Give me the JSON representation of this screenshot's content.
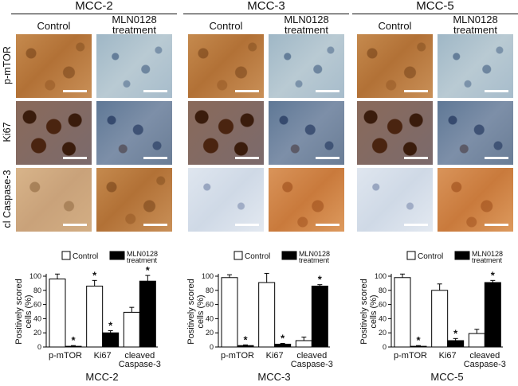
{
  "panels": [
    {
      "title": "MCC-2",
      "col_control": "Control",
      "col_treat": "MLN0128\ntreatment"
    },
    {
      "title": "MCC-3",
      "col_control": "Control",
      "col_treat": "MLN0128\ntreatment"
    },
    {
      "title": "MCC-5",
      "col_control": "Control",
      "col_treat": "MLN0128\ntreatment"
    }
  ],
  "row_labels": [
    "p-mTOR",
    "Ki67",
    "cl Caspase-3"
  ],
  "legend": {
    "control": "Control",
    "treatment_line1": "MLN0128",
    "treatment_line2": "treatment"
  },
  "ylabel_line1": "Positively scored",
  "ylabel_line2": "cells (%)",
  "colors": {
    "control_bar": "#ffffff",
    "treatment_bar": "#000000"
  },
  "chart_data": [
    {
      "type": "bar",
      "title": "MCC-2",
      "xlabel": "MCC-2",
      "ylabel": "Positively scored cells (%)",
      "ylim": [
        0,
        100
      ],
      "yticks": [
        0,
        20,
        40,
        60,
        80,
        100
      ],
      "categories": [
        "p-mTOR",
        "Ki67",
        "cleaved Caspase-3"
      ],
      "category_lines": [
        [
          "p-mTOR"
        ],
        [
          "Ki67"
        ],
        [
          "cleaved",
          "Caspase-3"
        ]
      ],
      "series": [
        {
          "name": "Control",
          "values": [
            96,
            86,
            49
          ],
          "errors": [
            7,
            8,
            7
          ]
        },
        {
          "name": "MLN0128 treatment",
          "values": [
            1,
            20,
            93
          ],
          "errors": [
            1,
            3,
            8
          ]
        }
      ],
      "significance": [
        false,
        true,
        true,
        true,
        false,
        true
      ]
    },
    {
      "type": "bar",
      "title": "MCC-3",
      "xlabel": "MCC-3",
      "ylabel": "Positively scored cells (%)",
      "ylim": [
        0,
        100
      ],
      "yticks": [
        0,
        20,
        40,
        60,
        80,
        100
      ],
      "categories": [
        "p-mTOR",
        "Ki67",
        "cleaved Caspase-3"
      ],
      "category_lines": [
        [
          "p-mTOR"
        ],
        [
          "Ki67"
        ],
        [
          "cleaved",
          "Caspase-3"
        ]
      ],
      "series": [
        {
          "name": "Control",
          "values": [
            98,
            91,
            9
          ],
          "errors": [
            4,
            13,
            5
          ]
        },
        {
          "name": "MLN0128 treatment",
          "values": [
            2,
            4,
            86
          ],
          "errors": [
            1,
            1,
            2
          ]
        }
      ],
      "significance": [
        false,
        true,
        false,
        true,
        false,
        true
      ]
    },
    {
      "type": "bar",
      "title": "MCC-5",
      "xlabel": "MCC-5",
      "ylabel": "Positively scored cells (%)",
      "ylim": [
        0,
        100
      ],
      "yticks": [
        0,
        20,
        40,
        60,
        80,
        100
      ],
      "categories": [
        "p-mTOR",
        "Ki67",
        "cleaved Caspase-3"
      ],
      "category_lines": [
        [
          "p-mTOR"
        ],
        [
          "Ki67"
        ],
        [
          "cleaved",
          "Caspase-3"
        ]
      ],
      "series": [
        {
          "name": "Control",
          "values": [
            98,
            80,
            19
          ],
          "errors": [
            5,
            9,
            6
          ]
        },
        {
          "name": "MLN0128 treatment",
          "values": [
            1,
            9,
            91
          ],
          "errors": [
            1,
            3,
            3
          ]
        }
      ],
      "significance": [
        false,
        true,
        false,
        true,
        false,
        true
      ]
    }
  ]
}
